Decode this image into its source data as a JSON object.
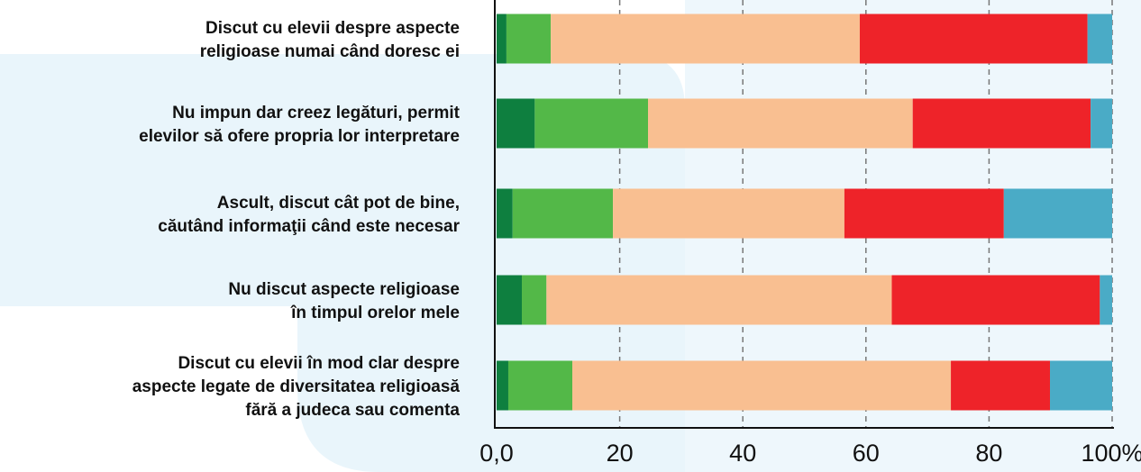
{
  "chart_data": {
    "type": "stacked-barh",
    "categories": [
      [
        "Discut cu elevii despre aspecte",
        "religioase numai când doresc ei"
      ],
      [
        "Nu impun dar creez legături, permit",
        "elevilor să ofere propria lor interpretare"
      ],
      [
        "Ascult, discut cât pot de bine,",
        "căutând informaţii când este necesar"
      ],
      [
        "Nu discut aspecte religioase",
        "în timpul orelor mele"
      ],
      [
        "Discut cu elevii în mod clar despre",
        "aspecte legate de diversitatea religioasă",
        "fără a judeca sau comenta"
      ]
    ],
    "series": [
      {
        "color": "#0e7f3f",
        "values": [
          1.6,
          6.2,
          2.6,
          4.1,
          1.9
        ]
      },
      {
        "color": "#53b848",
        "values": [
          7.2,
          18.4,
          16.3,
          4.0,
          10.4
        ]
      },
      {
        "color": "#f9bf91",
        "values": [
          50.2,
          43.0,
          37.6,
          56.1,
          61.5
        ]
      },
      {
        "color": "#ee2329",
        "values": [
          37.0,
          28.9,
          25.9,
          33.8,
          16.1
        ]
      },
      {
        "color": "#4aabc6",
        "values": [
          4.0,
          3.5,
          17.6,
          2.0,
          10.1
        ]
      }
    ],
    "xlim": [
      0,
      100
    ],
    "xticks": [
      {
        "value": 0,
        "label": "0,0"
      },
      20,
      40,
      60,
      80,
      {
        "value": 100,
        "label": "100%"
      }
    ],
    "grid": true
  }
}
